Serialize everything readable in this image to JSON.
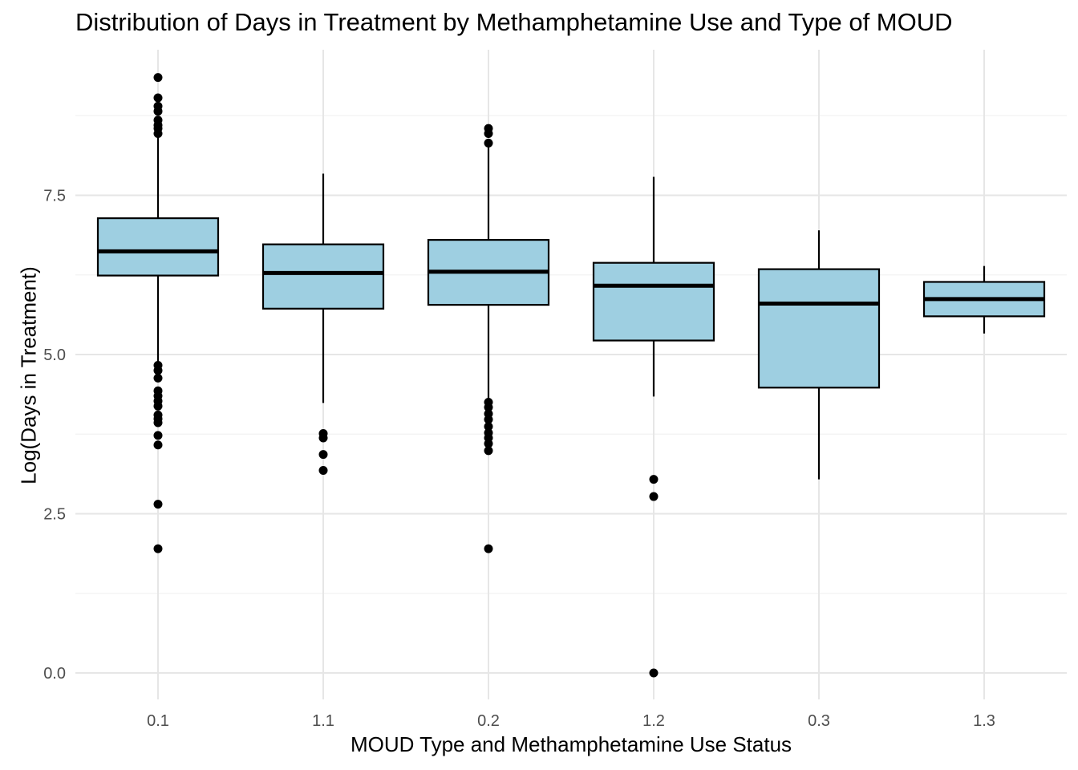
{
  "chart_data": {
    "type": "box",
    "title": "Distribution of Days in Treatment by Methamphetamine Use and Type of MOUD",
    "xlabel": "MOUD Type and Methamphetamine Use Status",
    "ylabel": "Log(Days in Treatment)",
    "ylim": [
      -0.4,
      9.75
    ],
    "yticks": [
      0.0,
      2.5,
      5.0,
      7.5
    ],
    "ytick_labels": [
      "0.0",
      "2.5",
      "5.0",
      "7.5"
    ],
    "grid": true,
    "categories": [
      "0.1",
      "1.1",
      "0.2",
      "1.2",
      "0.3",
      "1.3"
    ],
    "boxes": [
      {
        "category": "0.1",
        "whisker_low": 4.85,
        "q1": 6.24,
        "median": 6.62,
        "q3": 7.14,
        "whisker_high": 8.45,
        "outliers": [
          9.35,
          9.03,
          8.9,
          8.82,
          8.68,
          8.6,
          8.55,
          8.47,
          4.83,
          4.75,
          4.63,
          4.43,
          4.35,
          4.27,
          4.19,
          4.05,
          3.99,
          3.93,
          3.73,
          3.58,
          2.65,
          1.95
        ]
      },
      {
        "category": "1.1",
        "whisker_low": 4.24,
        "q1": 5.72,
        "median": 6.28,
        "q3": 6.73,
        "whisker_high": 7.84,
        "outliers": [
          3.76,
          3.69,
          3.43,
          3.18
        ]
      },
      {
        "category": "0.2",
        "whisker_low": 4.27,
        "q1": 5.78,
        "median": 6.3,
        "q3": 6.8,
        "whisker_high": 8.3,
        "outliers": [
          8.55,
          8.47,
          8.32,
          4.25,
          4.17,
          4.07,
          3.98,
          3.87,
          3.77,
          3.69,
          3.6,
          3.49,
          1.95
        ]
      },
      {
        "category": "1.2",
        "whisker_low": 4.34,
        "q1": 5.22,
        "median": 6.08,
        "q3": 6.44,
        "whisker_high": 7.79,
        "outliers": [
          3.04,
          2.77,
          0.0
        ]
      },
      {
        "category": "0.3",
        "whisker_low": 3.04,
        "q1": 4.48,
        "median": 5.8,
        "q3": 6.34,
        "whisker_high": 6.95,
        "outliers": []
      },
      {
        "category": "1.3",
        "whisker_low": 5.33,
        "q1": 5.6,
        "median": 5.87,
        "q3": 6.14,
        "whisker_high": 6.39,
        "outliers": []
      }
    ],
    "colors": {
      "box_fill": "#9ecfe1",
      "box_stroke": "#000000",
      "grid_major": "#e6e6e6",
      "grid_minor": "#f2f2f2",
      "tick_label": "#4d4d4d",
      "outlier": "#000000"
    }
  }
}
